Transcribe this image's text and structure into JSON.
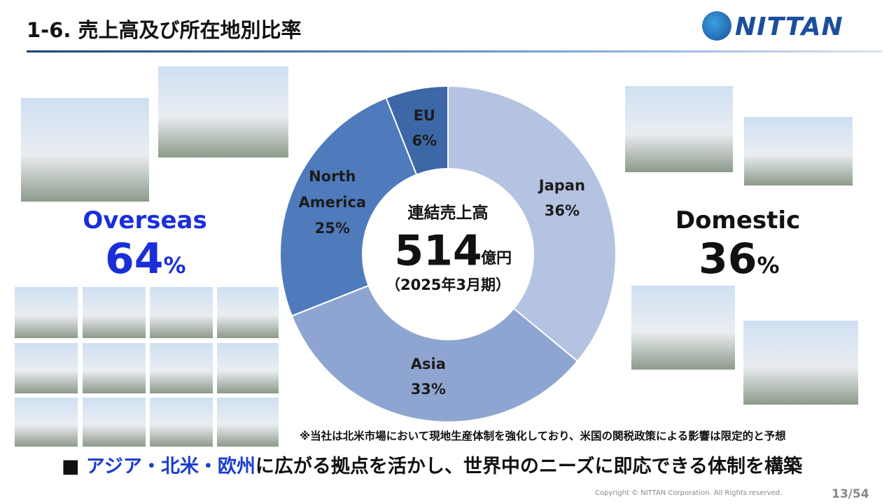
{
  "header": {
    "title": "1-6. 売上高及び所在地別比率",
    "logo": "NITTAN"
  },
  "chart_data": {
    "type": "pie",
    "donut": true,
    "categories": [
      "Japan",
      "Asia",
      "North America",
      "EU"
    ],
    "values": [
      36,
      33,
      25,
      6
    ],
    "value_labels": [
      "36%",
      "33%",
      "25%",
      "6%"
    ],
    "colors": [
      "#b4c3e1",
      "#8fa5d1",
      "#4f7bbd",
      "#3d67a7"
    ],
    "center_label": {
      "title": "連結売上高",
      "value": 514,
      "unit": "億円",
      "period": "（2025年3月期）"
    }
  },
  "overseas": {
    "label": "Overseas",
    "value": 64,
    "unit": "%"
  },
  "domestic": {
    "label": "Domestic",
    "value": 36,
    "unit": "%"
  },
  "note": "※当社は北米市場において現地生産体制を強化しており、米国の関税政策による影響は限定的と予想",
  "message": {
    "bullet": "■",
    "highlight": "アジア・北米・欧州",
    "text": "に広がる拠点を活かし、世界中のニーズに即応できる体制を構築"
  },
  "footer": {
    "copyright": "Copyright © NITTAN Corporation. All Rights reserved.",
    "page": "13/54"
  }
}
